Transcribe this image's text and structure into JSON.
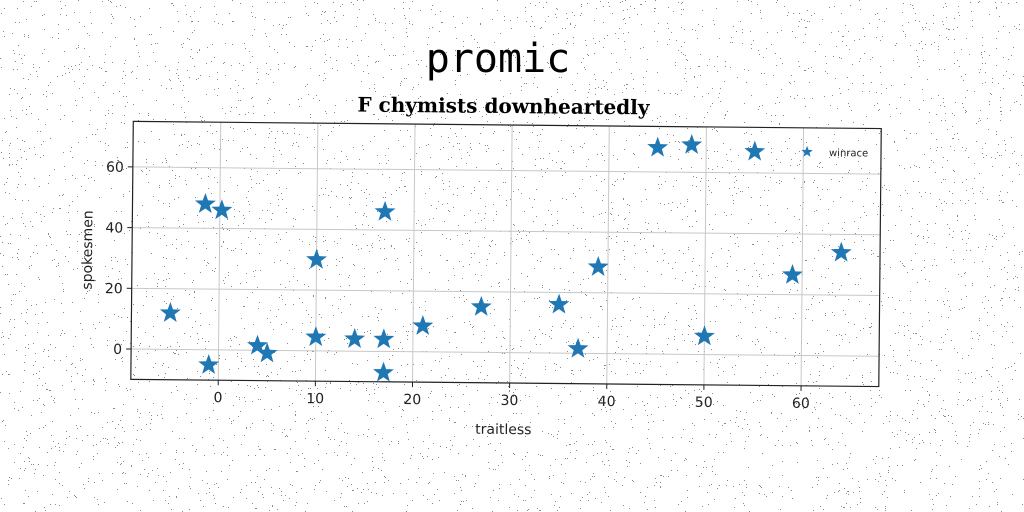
{
  "chart_data": {
    "type": "scatter",
    "suptitle": "promic",
    "title": "F chymists downheartedly",
    "xlabel": "traitless",
    "ylabel": "spokesmen",
    "xlim": [
      -9,
      68
    ],
    "ylim": [
      -10,
      75
    ],
    "xticks": [
      0,
      10,
      20,
      30,
      40,
      50,
      60
    ],
    "yticks": [
      0,
      20,
      40,
      60
    ],
    "grid": true,
    "legend_position": "top-right",
    "series": [
      {
        "name": "winrace",
        "color": "#1f77b4",
        "marker": "star",
        "x": [
          -5,
          -1.5,
          0.2,
          -1,
          4,
          5,
          10,
          10,
          14,
          17,
          17,
          17,
          21,
          27,
          35,
          37,
          39,
          45,
          48.5,
          50,
          55,
          59,
          64
        ],
        "y": [
          12,
          48,
          46,
          -5,
          1.5,
          -1,
          30,
          4.5,
          4,
          46,
          4,
          -7,
          8.5,
          15,
          16,
          1.5,
          28.5,
          68,
          69,
          6,
          67,
          26.5,
          34
        ]
      }
    ]
  }
}
